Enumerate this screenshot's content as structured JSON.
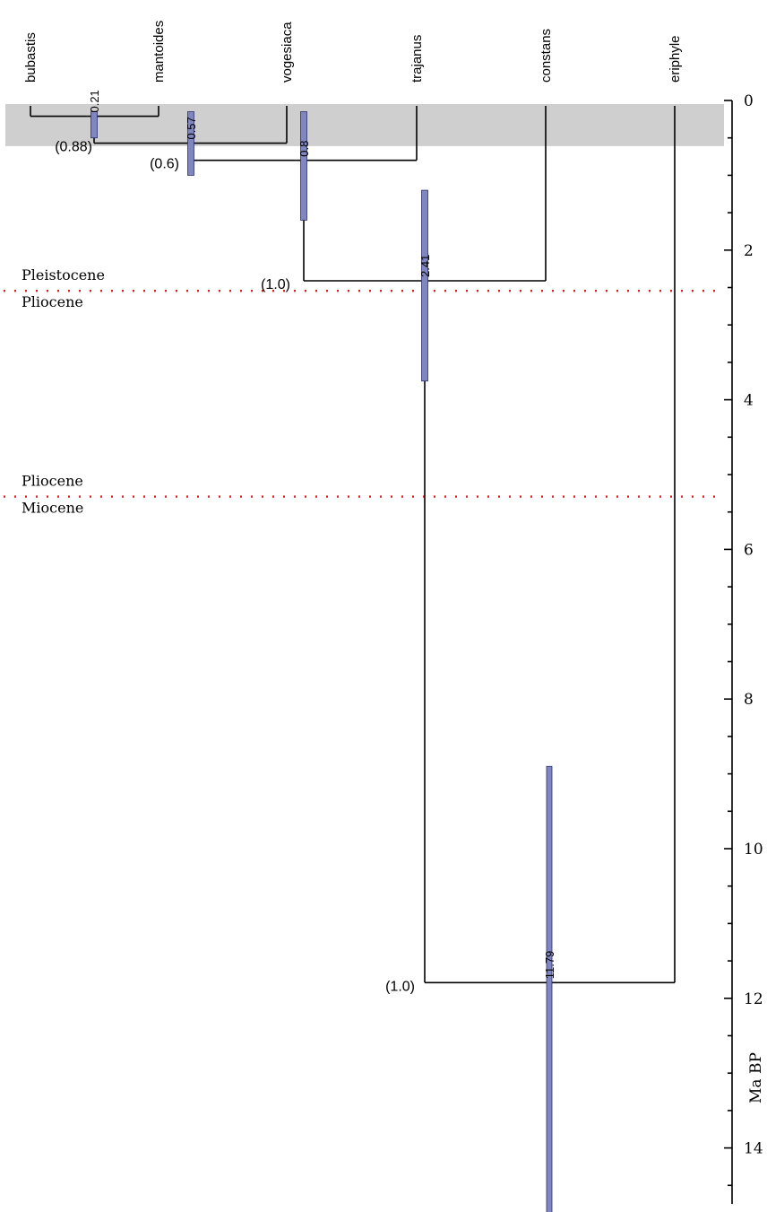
{
  "tree": {
    "taxa": [
      "bubastis",
      "mantoides",
      "vogesiaca",
      "trajanus",
      "constans",
      "eriphyle"
    ],
    "nodes": [
      {
        "id": "n1",
        "label": "0.21",
        "age": 0.21,
        "hpd": [
          0.15,
          0.5
        ],
        "support": "",
        "children": [
          "bubastis",
          "mantoides"
        ]
      },
      {
        "id": "n2",
        "label": "0.57",
        "age": 0.57,
        "hpd": [
          0.15,
          1.0
        ],
        "support": "(0.88)",
        "children": [
          "n1",
          "vogesiaca"
        ]
      },
      {
        "id": "n3",
        "label": "0.8",
        "age": 0.8,
        "hpd": [
          0.15,
          1.6
        ],
        "support": "(0.6)",
        "children": [
          "n2",
          "trajanus"
        ]
      },
      {
        "id": "n4",
        "label": "2.41",
        "age": 2.41,
        "hpd": [
          1.2,
          3.75
        ],
        "support": "(1.0)",
        "children": [
          "n3",
          "constans"
        ]
      },
      {
        "id": "n5",
        "label": "11.79",
        "age": 11.79,
        "hpd": [
          8.9,
          15.0
        ],
        "support": "(1.0)",
        "children": [
          "n4",
          "eriphyle"
        ]
      }
    ],
    "shaded_band": [
      0.0,
      0.55
    ],
    "shade_color": "#cfcfcf",
    "hpd_color": "#7f86c0",
    "boundary_color": "#e02020"
  },
  "epochs": [
    {
      "age": 2.58,
      "above": "Pleistocene",
      "below": "Pliocene"
    },
    {
      "age": 5.33,
      "above": "Pliocene",
      "below": "Miocene"
    }
  ],
  "axis": {
    "label": "Ma BP",
    "range": [
      0,
      15
    ],
    "major_ticks": [
      "0",
      "2",
      "4",
      "6",
      "8",
      "10",
      "12",
      "14"
    ],
    "minor_step": 0.5
  }
}
